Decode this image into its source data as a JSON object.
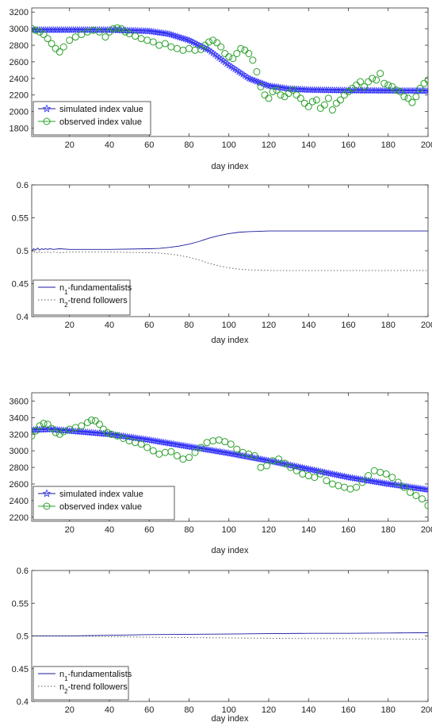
{
  "chart_data": [
    {
      "type": "line",
      "xlabel": "day index",
      "ylabel": "",
      "xlim": [
        1,
        200
      ],
      "ylim": [
        1700,
        3250
      ],
      "xticks": [
        20,
        40,
        60,
        80,
        100,
        120,
        140,
        160,
        180,
        200
      ],
      "yticks": [
        1800,
        2000,
        2200,
        2400,
        2600,
        2800,
        3000,
        3200
      ],
      "legend": "bottom-left",
      "series": [
        {
          "name": "simulated index value",
          "marker": "star",
          "color": "#2b2bff",
          "x": [
            1,
            20,
            40,
            60,
            70,
            80,
            90,
            100,
            110,
            120,
            130,
            140,
            160,
            180,
            200
          ],
          "y": [
            2985,
            2985,
            2985,
            2970,
            2935,
            2860,
            2740,
            2560,
            2400,
            2310,
            2275,
            2262,
            2255,
            2252,
            2250
          ]
        },
        {
          "name": "observed index value",
          "marker": "circle",
          "color": "#2aa02a",
          "x": [
            1,
            3,
            5,
            7,
            9,
            11,
            13,
            15,
            17,
            20,
            23,
            26,
            29,
            32,
            35,
            38,
            40,
            42,
            44,
            46,
            48,
            50,
            53,
            56,
            59,
            62,
            65,
            68,
            71,
            74,
            77,
            80,
            83,
            86,
            88,
            90,
            92,
            94,
            96,
            98,
            100,
            102,
            104,
            106,
            108,
            110,
            112,
            114,
            116,
            118,
            120,
            122,
            124,
            126,
            128,
            130,
            132,
            134,
            136,
            138,
            140,
            142,
            144,
            146,
            148,
            150,
            152,
            154,
            156,
            158,
            160,
            162,
            164,
            166,
            168,
            170,
            172,
            174,
            176,
            178,
            180,
            182,
            184,
            186,
            188,
            190,
            192,
            194,
            196,
            198,
            200
          ],
          "y": [
            3000,
            2980,
            2960,
            2930,
            2880,
            2820,
            2760,
            2720,
            2780,
            2860,
            2900,
            2930,
            2960,
            2980,
            2960,
            2900,
            2960,
            3000,
            3010,
            3000,
            2960,
            2940,
            2910,
            2880,
            2860,
            2840,
            2800,
            2820,
            2780,
            2760,
            2740,
            2760,
            2740,
            2750,
            2800,
            2840,
            2860,
            2830,
            2780,
            2700,
            2660,
            2640,
            2700,
            2760,
            2740,
            2700,
            2620,
            2480,
            2300,
            2200,
            2160,
            2240,
            2260,
            2200,
            2180,
            2220,
            2260,
            2200,
            2160,
            2100,
            2060,
            2120,
            2140,
            2040,
            2080,
            2160,
            2020,
            2100,
            2140,
            2200,
            2240,
            2280,
            2320,
            2360,
            2300,
            2360,
            2400,
            2380,
            2460,
            2340,
            2320,
            2300,
            2260,
            2240,
            2180,
            2160,
            2110,
            2180,
            2280,
            2340,
            2380
          ]
        }
      ]
    },
    {
      "type": "line",
      "xlabel": "day index",
      "ylabel": "",
      "xlim": [
        1,
        200
      ],
      "ylim": [
        0.4,
        0.6
      ],
      "xticks": [
        20,
        40,
        60,
        80,
        100,
        120,
        140,
        160,
        180,
        200
      ],
      "yticks": [
        0.4,
        0.45,
        0.5,
        0.55,
        0.6
      ],
      "ytick_labels": [
        "0.4",
        "0.45",
        "0.5",
        "0.55",
        "0.6"
      ],
      "legend": "bottom-left",
      "series": [
        {
          "name": "n1-fundamentalists",
          "style": "solid",
          "color": "#1a1aa0",
          "x": [
            1,
            2,
            3,
            4,
            5,
            6,
            7,
            8,
            9,
            10,
            12,
            15,
            20,
            40,
            60,
            65,
            70,
            75,
            80,
            85,
            90,
            95,
            100,
            105,
            110,
            115,
            120,
            140,
            160,
            180,
            200
          ],
          "y": [
            0.5,
            0.503,
            0.501,
            0.504,
            0.501,
            0.503,
            0.502,
            0.503,
            0.502,
            0.503,
            0.502,
            0.503,
            0.502,
            0.502,
            0.503,
            0.5035,
            0.505,
            0.507,
            0.51,
            0.514,
            0.519,
            0.523,
            0.526,
            0.528,
            0.529,
            0.5295,
            0.53,
            0.53,
            0.53,
            0.53,
            0.53
          ]
        },
        {
          "name": "n2-trend followers",
          "style": "dotted",
          "color": "#555555",
          "x": [
            1,
            2,
            3,
            4,
            5,
            6,
            7,
            8,
            9,
            10,
            12,
            15,
            20,
            40,
            60,
            65,
            70,
            75,
            80,
            85,
            90,
            95,
            100,
            105,
            110,
            115,
            120,
            140,
            160,
            180,
            200
          ],
          "y": [
            0.5,
            0.497,
            0.499,
            0.496,
            0.499,
            0.497,
            0.498,
            0.497,
            0.498,
            0.497,
            0.498,
            0.497,
            0.498,
            0.498,
            0.497,
            0.4965,
            0.495,
            0.493,
            0.49,
            0.486,
            0.481,
            0.477,
            0.474,
            0.472,
            0.471,
            0.4705,
            0.47,
            0.47,
            0.47,
            0.47,
            0.47
          ]
        }
      ]
    },
    {
      "type": "line",
      "xlabel": "day index",
      "ylabel": "",
      "xlim": [
        1,
        200
      ],
      "ylim": [
        2150,
        3700
      ],
      "xticks": [
        20,
        40,
        60,
        80,
        100,
        120,
        140,
        160,
        180,
        200
      ],
      "yticks": [
        2200,
        2400,
        2600,
        2800,
        3000,
        3200,
        3400,
        3600
      ],
      "legend": "bottom-left",
      "series": [
        {
          "name": "simulated index value",
          "marker": "star",
          "color": "#2b2bff",
          "x": [
            1,
            10,
            20,
            40,
            60,
            80,
            100,
            120,
            140,
            160,
            180,
            200
          ],
          "y": [
            3250,
            3260,
            3240,
            3200,
            3130,
            3050,
            2970,
            2880,
            2780,
            2680,
            2600,
            2530
          ]
        },
        {
          "name": "observed index value",
          "marker": "circle",
          "color": "#2aa02a",
          "x": [
            1,
            3,
            5,
            7,
            9,
            11,
            13,
            15,
            17,
            20,
            23,
            26,
            29,
            31,
            33,
            35,
            37,
            39,
            41,
            44,
            47,
            50,
            53,
            56,
            59,
            62,
            65,
            68,
            71,
            74,
            77,
            80,
            83,
            86,
            89,
            92,
            95,
            98,
            101,
            104,
            107,
            110,
            113,
            116,
            119,
            122,
            125,
            128,
            131,
            134,
            137,
            140,
            143,
            146,
            149,
            152,
            155,
            158,
            161,
            164,
            167,
            170,
            173,
            176,
            179,
            182,
            185,
            188,
            191,
            194,
            197,
            200
          ],
          "y": [
            3180,
            3240,
            3300,
            3330,
            3320,
            3270,
            3220,
            3200,
            3230,
            3260,
            3280,
            3300,
            3340,
            3370,
            3360,
            3320,
            3260,
            3220,
            3200,
            3180,
            3150,
            3120,
            3100,
            3080,
            3040,
            3000,
            2960,
            2980,
            2990,
            2940,
            2900,
            2920,
            2980,
            3040,
            3100,
            3120,
            3130,
            3110,
            3080,
            3020,
            2980,
            2960,
            2940,
            2800,
            2820,
            2880,
            2900,
            2850,
            2800,
            2760,
            2720,
            2700,
            2680,
            2720,
            2640,
            2600,
            2580,
            2560,
            2540,
            2560,
            2620,
            2700,
            2760,
            2740,
            2720,
            2680,
            2620,
            2560,
            2500,
            2460,
            2420,
            2340
          ]
        }
      ]
    },
    {
      "type": "line",
      "xlabel": "day index",
      "ylabel": "",
      "xlim": [
        1,
        200
      ],
      "ylim": [
        0.4,
        0.6
      ],
      "xticks": [
        20,
        40,
        60,
        80,
        100,
        120,
        140,
        160,
        180,
        200
      ],
      "yticks": [
        0.4,
        0.45,
        0.5,
        0.55,
        0.6
      ],
      "ytick_labels": [
        "0.4",
        "0.45",
        "0.5",
        "0.55",
        "0.6"
      ],
      "legend": "bottom-left",
      "series": [
        {
          "name": "n1-fundamentalists",
          "style": "solid",
          "color": "#1a1aa0",
          "x": [
            1,
            20,
            40,
            60,
            80,
            100,
            120,
            140,
            160,
            180,
            200
          ],
          "y": [
            0.5,
            0.5,
            0.501,
            0.502,
            0.5025,
            0.503,
            0.5035,
            0.504,
            0.504,
            0.5045,
            0.505
          ]
        },
        {
          "name": "n2-trend followers",
          "style": "dotted",
          "color": "#555555",
          "x": [
            1,
            20,
            40,
            60,
            80,
            100,
            120,
            140,
            160,
            180,
            200
          ],
          "y": [
            0.5,
            0.5,
            0.499,
            0.498,
            0.4975,
            0.497,
            0.4965,
            0.496,
            0.496,
            0.4955,
            0.495
          ]
        }
      ]
    }
  ]
}
